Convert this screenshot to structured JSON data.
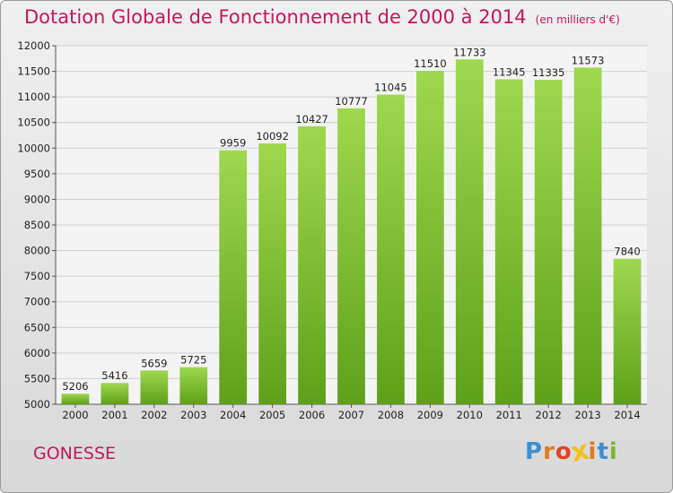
{
  "title": "Dotation Globale de Fonctionnement de 2000 à 2014",
  "subtitle": "(en milliers d'€)",
  "city": "GONESSE",
  "logo": {
    "text": "Proxiti",
    "letters": [
      "P",
      "r",
      "o",
      "x",
      "i",
      "t",
      "i"
    ],
    "colors": [
      "#3d8fd1",
      "#e07b22",
      "#e04422",
      "#f2c118",
      "#e07b22",
      "#3d8fd1",
      "#76b82a"
    ]
  },
  "colors": {
    "title": "#c2185b",
    "bar_top": "#9ed84f",
    "bar_bottom": "#5fa01a"
  },
  "chart_data": {
    "type": "bar",
    "title": "Dotation Globale de Fonctionnement de 2000 à 2014",
    "subtitle": "(en milliers d'€)",
    "xlabel": "",
    "ylabel": "",
    "categories": [
      "2000",
      "2001",
      "2002",
      "2003",
      "2004",
      "2005",
      "2006",
      "2007",
      "2008",
      "2009",
      "2010",
      "2011",
      "2012",
      "2013",
      "2014"
    ],
    "values": [
      5206,
      5416,
      5659,
      5725,
      9959,
      10092,
      10427,
      10777,
      11045,
      11510,
      11733,
      11345,
      11335,
      11573,
      7840
    ],
    "ylim": [
      5000,
      12000
    ],
    "yticks": [
      5000,
      5500,
      6000,
      6500,
      7000,
      7500,
      8000,
      8500,
      9000,
      9500,
      10000,
      10500,
      11000,
      11500,
      12000
    ],
    "grid": true,
    "legend": "none"
  }
}
